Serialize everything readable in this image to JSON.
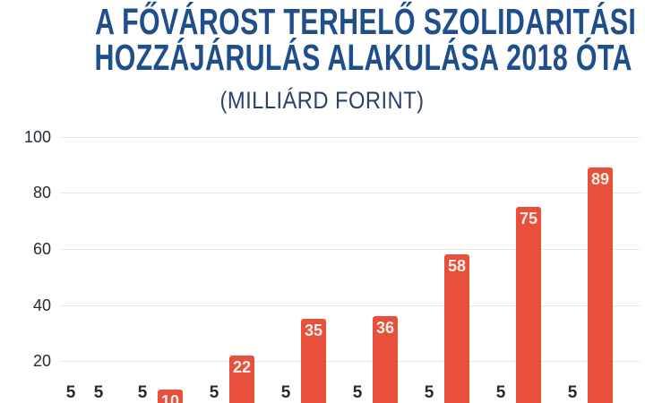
{
  "header": {
    "title_line1": "A FŐVÁROST TERHELŐ SZOLIDARITÁSI",
    "title_line2": "HOZZÁJÁRULÁS ALAKULÁSA 2018 ÓTA",
    "subtitle": "(MILLIÁRD FORINT)",
    "title_color": "#1E4E8C"
  },
  "chart_data": {
    "type": "bar",
    "title": "A FŐVÁROST TERHELŐ SZOLIDARITÁSI HOZZÁJÁRULÁS ALAKULÁSA 2018 ÓTA",
    "subtitle": "(MILLIÁRD FORINT)",
    "ylabel": "",
    "xlabel": "",
    "ylim": [
      0,
      100
    ],
    "y_ticks": [
      20,
      40,
      60,
      80,
      100
    ],
    "grid": true,
    "legend_position": "none",
    "group_count": 8,
    "series": [
      {
        "values": [
          5,
          5,
          5,
          5,
          5,
          5,
          5,
          5
        ]
      },
      {
        "values": [
          5,
          10,
          22,
          35,
          36,
          58,
          75,
          89
        ]
      }
    ],
    "bar_color": "#E8503B",
    "value_label_inside_color": "#F7F0E9",
    "value_label_outside_color": "#242D36",
    "gridline_color": "#E8E8E8"
  }
}
